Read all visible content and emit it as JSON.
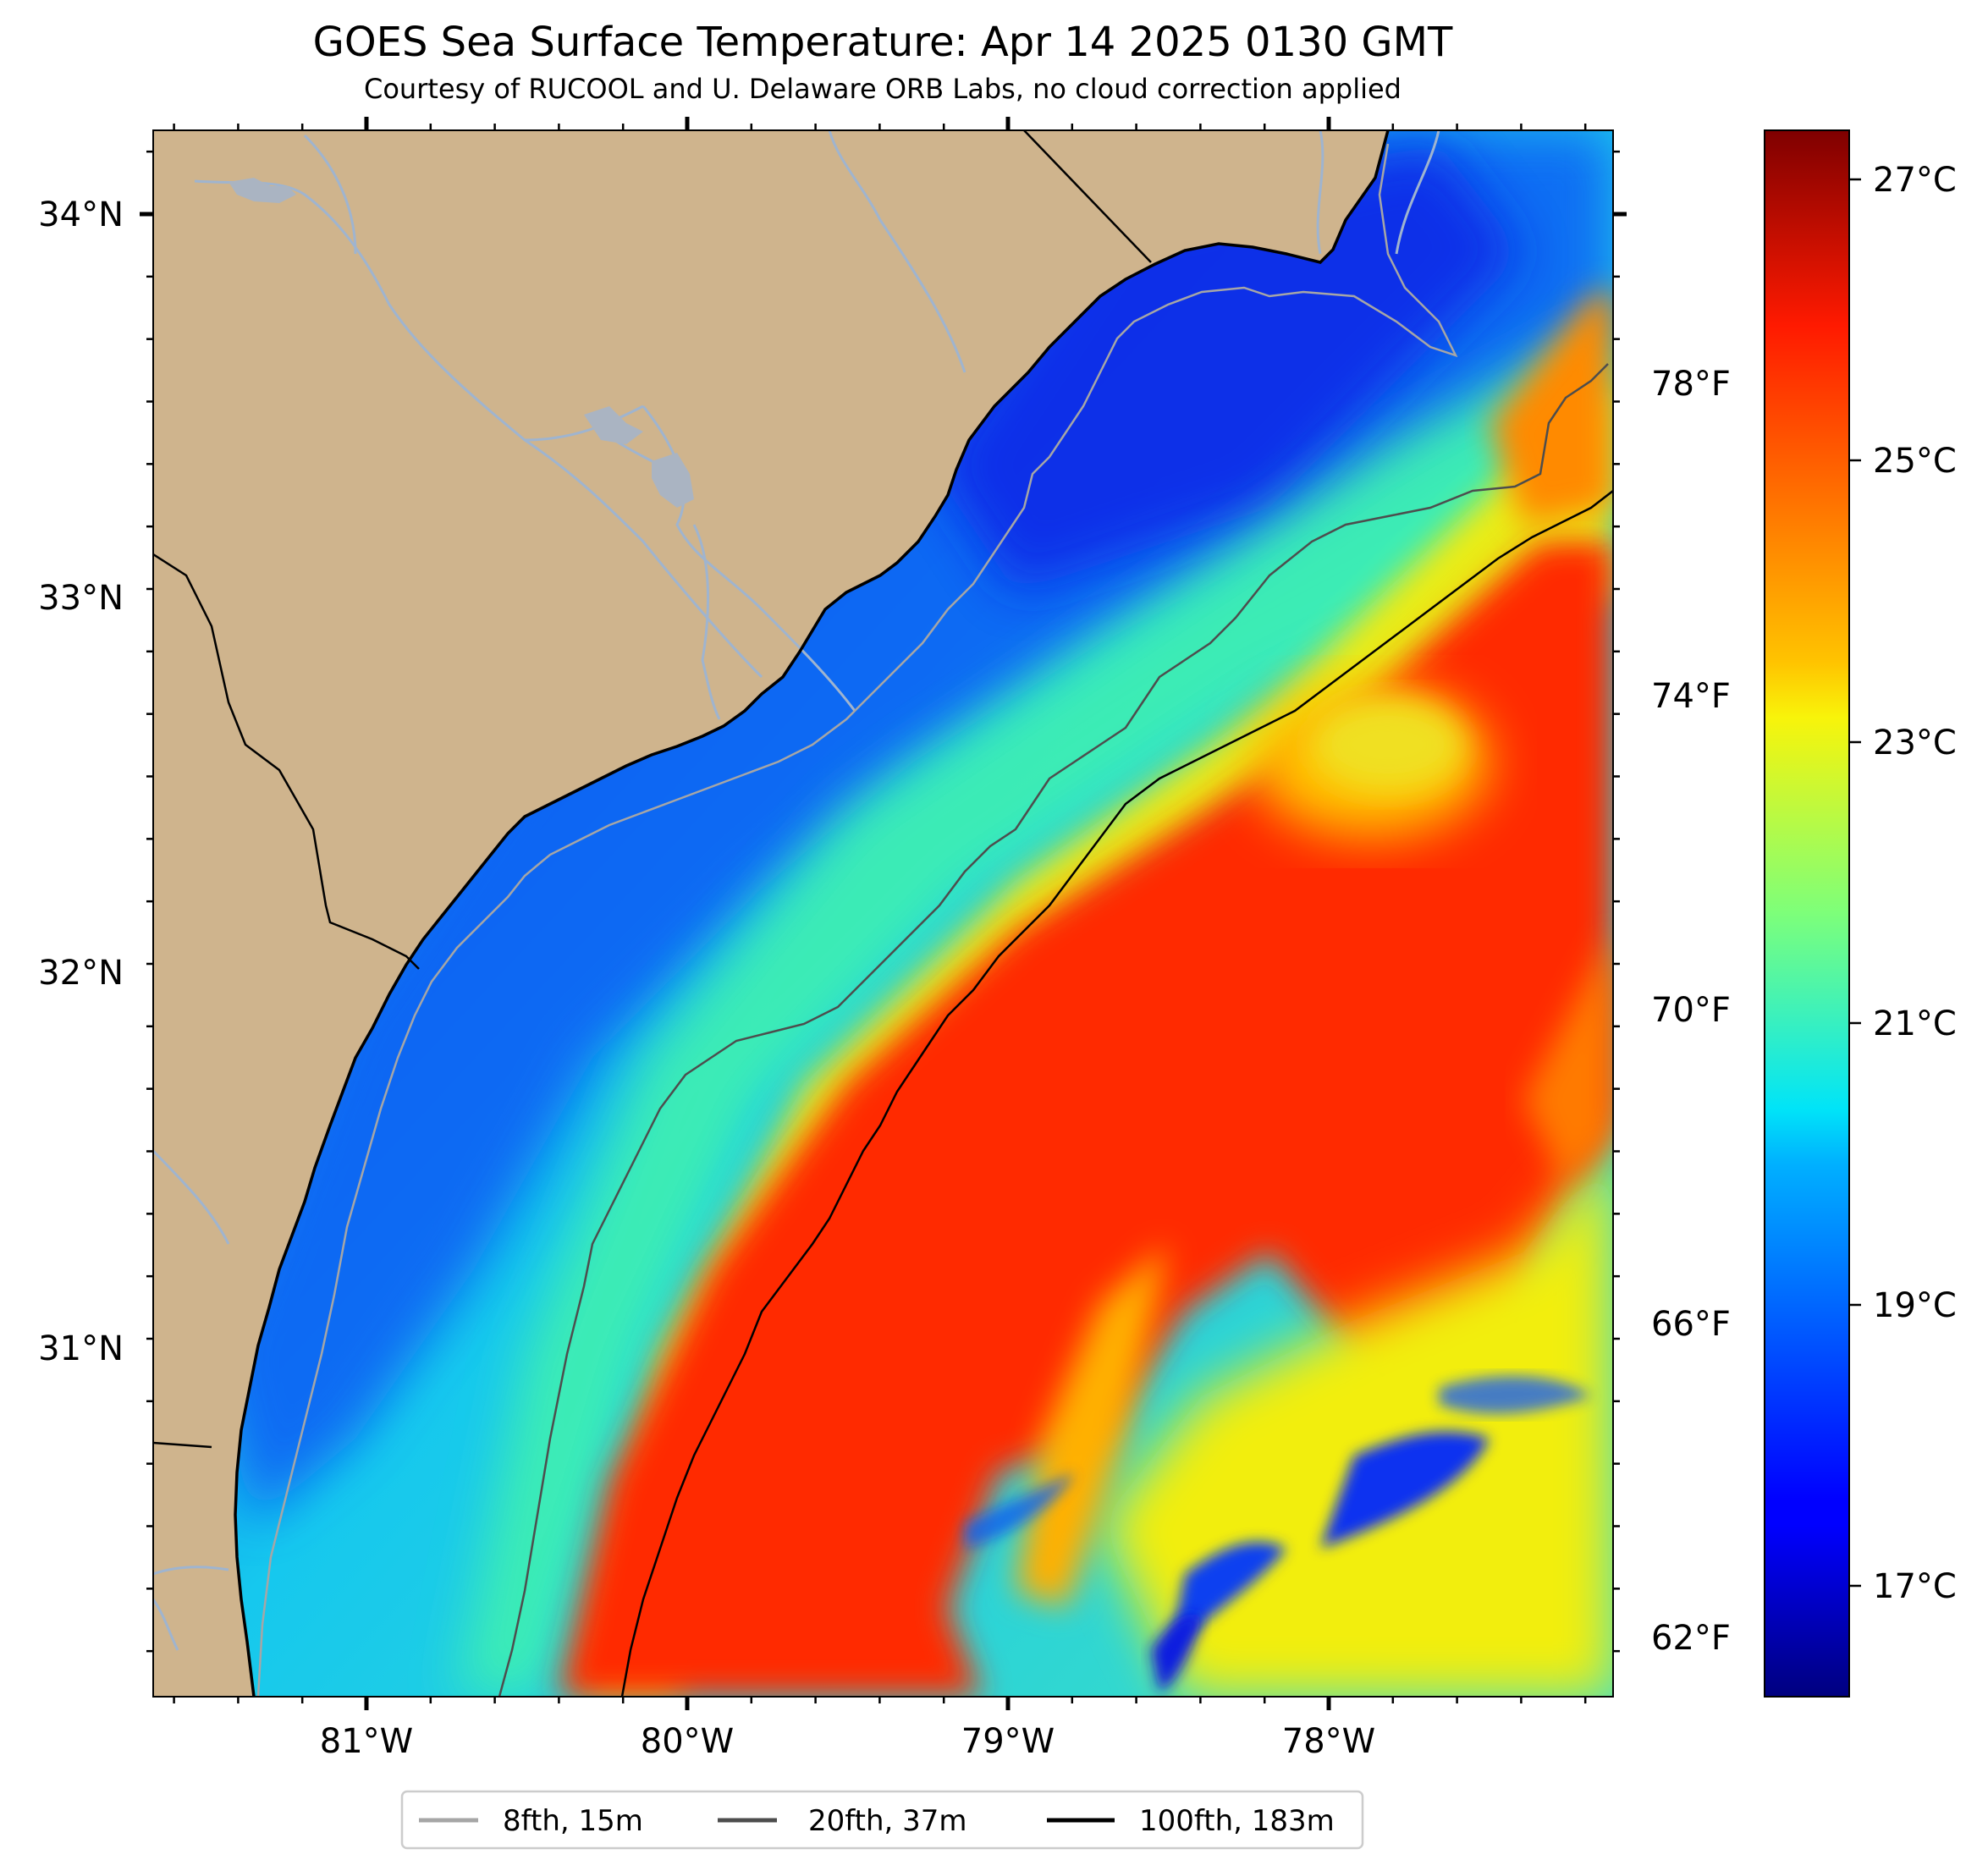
{
  "title": "GOES Sea Surface Temperature: Apr 14 2025 0130 GMT",
  "subtitle": "Courtesy of RUCOOL and U. Delaware ORB Labs, no cloud correction applied",
  "map": {
    "lon_ticks": [
      "81°W",
      "80°W",
      "79°W",
      "78°W"
    ],
    "lat_ticks": [
      "34°N",
      "33°N",
      "32°N",
      "31°N"
    ],
    "land_color": "#cfb48d",
    "river_color": "#9fb4cf"
  },
  "colorbar": {
    "colormap": "jet",
    "celsius_ticks": [
      "27°C",
      "25°C",
      "23°C",
      "21°C",
      "19°C",
      "17°C"
    ],
    "fahrenheit_ticks": [
      "78°F",
      "74°F",
      "70°F",
      "66°F",
      "62°F"
    ],
    "range_celsius": [
      16.2,
      27.4
    ]
  },
  "legend": {
    "items": [
      {
        "label": "8fth, 15m",
        "color": "#a6a6a6"
      },
      {
        "label": "20fth, 37m",
        "color": "#4d4d4d"
      },
      {
        "label": "100fth, 183m",
        "color": "#000000"
      }
    ]
  }
}
